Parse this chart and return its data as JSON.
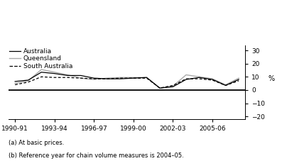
{
  "x_labels": [
    "1990-91",
    "1993-94",
    "1996-97",
    "1999-00",
    "2002-03",
    "2005-06"
  ],
  "australia": [
    6.5,
    7.5,
    13.5,
    12.5,
    11.0,
    11.0,
    9.0,
    8.5,
    8.5,
    9.0,
    9.5,
    1.5,
    2.5,
    8.0,
    9.5,
    8.0,
    3.5,
    8.0
  ],
  "queensland": [
    5.0,
    7.0,
    15.5,
    13.5,
    11.5,
    9.0,
    8.0,
    9.0,
    9.5,
    9.5,
    9.5,
    1.5,
    3.0,
    11.5,
    10.0,
    8.5,
    4.0,
    9.0
  ],
  "south_australia": [
    4.0,
    6.0,
    10.0,
    9.5,
    9.5,
    9.0,
    8.5,
    8.5,
    9.0,
    9.0,
    9.0,
    1.5,
    3.5,
    8.5,
    8.5,
    7.5,
    3.5,
    7.0
  ],
  "ylim": [
    -22,
    34
  ],
  "yticks": [
    -20,
    -10,
    0,
    10,
    20,
    30
  ],
  "ylabel": "%",
  "note1": "(a) At basic prices.",
  "note2": "(b) Reference year for chain volume measures is 2004–05.",
  "line_color_australia": "#000000",
  "line_color_queensland": "#aaaaaa",
  "line_color_south_australia": "#000000",
  "legend_labels": [
    "Australia",
    "Queensland",
    "South Australia"
  ],
  "background_color": "#ffffff"
}
